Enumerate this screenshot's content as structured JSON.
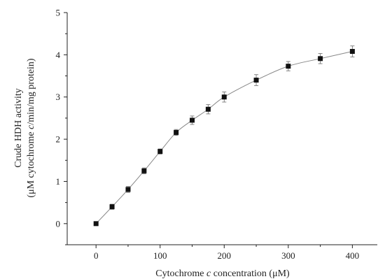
{
  "chart_data": {
    "type": "scatter",
    "xlabel_parts": [
      "Cytochrome ",
      "c",
      " concentration (μM)"
    ],
    "ylabel_line1": "Crude HDH activity",
    "ylabel_line2_parts": [
      "(μM cytochrome ",
      "c",
      "/min/mg protein)"
    ],
    "xlim": [
      -45,
      440
    ],
    "ylim": [
      -0.5,
      5
    ],
    "x_ticks": [
      0,
      100,
      200,
      300,
      400
    ],
    "y_ticks": [
      0,
      1,
      2,
      3,
      4,
      5
    ],
    "x_tick_labels": [
      "0",
      "100",
      "200",
      "300",
      "400"
    ],
    "y_tick_labels": [
      "0",
      "1",
      "2",
      "3",
      "4",
      "5"
    ],
    "grid": false,
    "series": [
      {
        "x": [
          0,
          25,
          50,
          75,
          100,
          125,
          150,
          175,
          200,
          250,
          300,
          350,
          400
        ],
        "y": [
          0,
          0.4,
          0.81,
          1.25,
          1.71,
          2.16,
          2.45,
          2.71,
          3.0,
          3.4,
          3.73,
          3.91,
          4.08
        ],
        "error": [
          0.03,
          0.06,
          0.07,
          0.07,
          0.06,
          0.07,
          0.1,
          0.11,
          0.12,
          0.13,
          0.11,
          0.12,
          0.13
        ],
        "marker": "square",
        "color": "#111111",
        "curve": "smooth"
      }
    ]
  }
}
